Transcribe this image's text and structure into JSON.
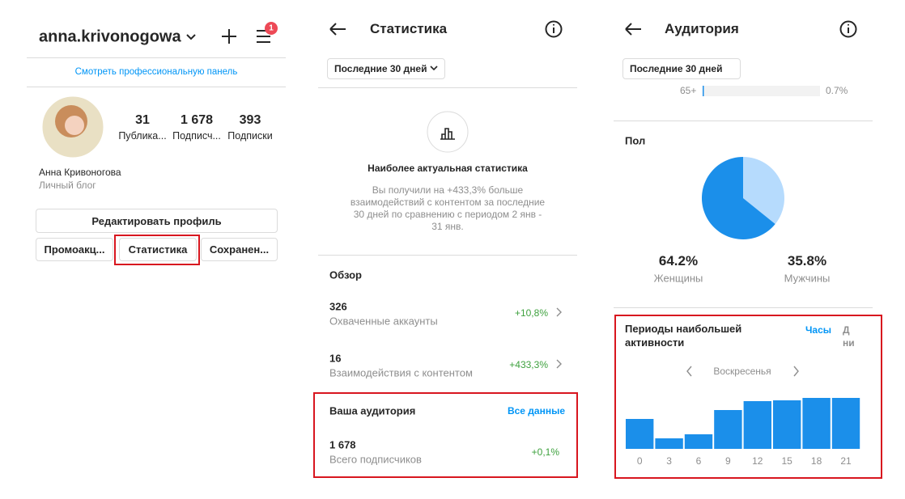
{
  "profile": {
    "username": "anna.krivonogowa",
    "badge": "1",
    "pro_panel_link": "Смотреть профессиональную панель",
    "stats": [
      {
        "value": "31",
        "label": "Публика..."
      },
      {
        "value": "1 678",
        "label": "Подписч..."
      },
      {
        "value": "393",
        "label": "Подписки"
      }
    ],
    "name": "Анна Кривоногова",
    "bio": "Личный блог",
    "buttons": {
      "edit": "Редактировать профиль",
      "row": [
        "Промоакц...",
        "Статистика",
        "Сохранен..."
      ]
    }
  },
  "insights": {
    "title": "Статистика",
    "period": "Последние 30 дней",
    "highlight": {
      "title": "Наиболее актуальная статистика",
      "text": [
        "Вы получили на +433,3% больше",
        "взаимодействий с контентом за последние",
        "30 дней по сравнению с периодом 2 янв -",
        "31 янв."
      ]
    },
    "overview": {
      "title": "Обзор",
      "rows": [
        {
          "value": "326",
          "label": "Охваченные аккаунты",
          "change": "+10,8%"
        },
        {
          "value": "16",
          "label": "Взаимодействия с контентом",
          "change": "+433,3%"
        }
      ]
    },
    "audience": {
      "title": "Ваша аудитория",
      "link": "Все данные",
      "value": "1 678",
      "label": "Всего подписчиков",
      "change": "+0,1%"
    }
  },
  "audience": {
    "title": "Аудитория",
    "period": "Последние 30 дней",
    "age_row": {
      "label": "65+",
      "value": 0.7,
      "value_label": "0.7%"
    },
    "gender": {
      "title": "Пол",
      "categories": [
        "Женщины",
        "Мужчины"
      ],
      "values": [
        64.2,
        35.8
      ],
      "value_labels": [
        "64.2%",
        "35.8%"
      ],
      "colors": [
        "#1b8fea",
        "#b6dbfd"
      ]
    },
    "activity": {
      "title": "Периоды наибольшей активности",
      "tabs": [
        "Часы",
        "Дни"
      ],
      "day": "Воскресенья",
      "categories": [
        "0",
        "3",
        "6",
        "9",
        "12",
        "15",
        "18",
        "21"
      ],
      "values": [
        37,
        13,
        18,
        48,
        59,
        60,
        63,
        63
      ],
      "color": "#1b8fea"
    }
  }
}
